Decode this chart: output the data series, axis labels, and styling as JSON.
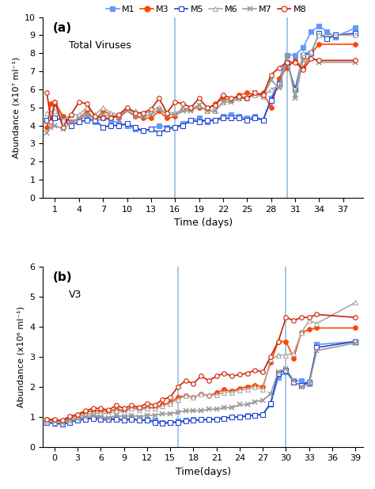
{
  "panel_a": {
    "title": "(a)",
    "label": "Total Viruses",
    "ylabel": "Abundance (x10⁷ ml⁻¹)",
    "xlabel": "Time (days)",
    "ylim": [
      0,
      10
    ],
    "yticks": [
      0,
      1,
      2,
      3,
      4,
      5,
      6,
      7,
      8,
      9,
      10
    ],
    "xticks": [
      1,
      4,
      7,
      10,
      13,
      16,
      19,
      22,
      25,
      28,
      31,
      34,
      37
    ],
    "xlim": [
      -0.5,
      39.5
    ],
    "vlines": [
      16,
      30
    ],
    "series": {
      "M1": {
        "x": [
          0,
          0.5,
          1,
          2,
          3,
          4,
          5,
          6,
          7,
          8,
          9,
          10,
          11,
          12,
          13,
          14,
          15,
          16,
          17,
          18,
          19,
          20,
          21,
          22,
          23,
          24,
          25,
          26,
          27,
          28,
          29,
          30,
          31,
          32,
          33,
          34,
          35,
          36,
          38.5
        ],
        "y": [
          4.3,
          4.6,
          5.2,
          4.4,
          4.2,
          4.3,
          4.5,
          4.2,
          4.4,
          4.3,
          4.1,
          4.0,
          3.8,
          3.7,
          3.8,
          4.0,
          3.9,
          3.9,
          4.1,
          4.3,
          4.4,
          4.2,
          4.3,
          4.5,
          4.6,
          4.5,
          4.4,
          4.5,
          4.3,
          5.5,
          6.5,
          7.9,
          7.9,
          8.3,
          9.2,
          9.5,
          9.2,
          8.9,
          9.4
        ],
        "color": "#6699ff",
        "marker": "s",
        "filled": true
      },
      "M3": {
        "x": [
          0,
          0.5,
          1,
          2,
          3,
          4,
          5,
          6,
          7,
          8,
          9,
          10,
          11,
          12,
          13,
          14,
          15,
          16,
          17,
          18,
          19,
          20,
          21,
          22,
          23,
          24,
          25,
          26,
          27,
          28,
          29,
          30,
          31,
          32,
          33,
          34,
          38.5
        ],
        "y": [
          3.9,
          5.2,
          5.3,
          4.5,
          4.2,
          4.4,
          4.8,
          4.3,
          4.8,
          4.6,
          4.4,
          4.9,
          4.5,
          4.4,
          4.4,
          4.8,
          4.4,
          4.5,
          4.9,
          4.9,
          5.0,
          4.9,
          5.2,
          5.5,
          5.4,
          5.7,
          5.8,
          5.7,
          5.8,
          5.0,
          6.6,
          7.2,
          7.6,
          7.2,
          8.0,
          8.5,
          8.5
        ],
        "color": "#ff4500",
        "marker": "o",
        "filled": true
      },
      "M5": {
        "x": [
          0,
          0.5,
          1,
          2,
          3,
          4,
          5,
          6,
          7,
          8,
          9,
          10,
          11,
          12,
          13,
          14,
          15,
          16,
          17,
          18,
          19,
          20,
          21,
          22,
          23,
          24,
          25,
          26,
          27,
          28,
          29,
          30,
          31,
          32,
          33,
          34,
          35,
          36,
          38.5
        ],
        "y": [
          4.3,
          4.4,
          4.4,
          4.3,
          4.0,
          4.2,
          4.3,
          4.3,
          3.9,
          4.0,
          4.0,
          4.1,
          3.9,
          3.7,
          3.8,
          3.6,
          3.8,
          3.9,
          4.0,
          4.3,
          4.2,
          4.3,
          4.3,
          4.4,
          4.4,
          4.4,
          4.3,
          4.4,
          4.3,
          5.4,
          6.3,
          7.5,
          6.0,
          7.9,
          8.0,
          9.1,
          8.8,
          9.0,
          9.1
        ],
        "color": "#2244cc",
        "marker": "s",
        "filled": false
      },
      "M6": {
        "x": [
          0,
          0.5,
          1,
          2,
          3,
          4,
          5,
          6,
          7,
          8,
          9,
          10,
          11,
          12,
          13,
          14,
          15,
          16,
          17,
          18,
          19,
          20,
          21,
          22,
          23,
          24,
          25,
          26,
          27,
          28,
          29,
          30,
          31,
          32,
          33,
          34,
          38.5
        ],
        "y": [
          4.7,
          4.7,
          4.8,
          4.3,
          4.6,
          4.6,
          5.0,
          4.6,
          5.0,
          4.7,
          4.6,
          4.9,
          4.8,
          4.6,
          4.8,
          5.0,
          4.7,
          4.7,
          4.9,
          5.0,
          5.1,
          4.8,
          4.8,
          5.3,
          5.5,
          5.5,
          5.5,
          5.7,
          5.6,
          6.0,
          6.2,
          7.6,
          5.7,
          8.0,
          8.1,
          9.0,
          9.0
        ],
        "color": "#aaaaaa",
        "marker": "^",
        "filled": false
      },
      "M7": {
        "x": [
          0,
          0.5,
          1,
          2,
          3,
          4,
          5,
          6,
          7,
          8,
          9,
          10,
          11,
          12,
          13,
          14,
          15,
          16,
          17,
          18,
          19,
          20,
          21,
          22,
          23,
          24,
          25,
          26,
          27,
          28,
          29,
          30,
          31,
          32,
          33,
          34,
          38.5
        ],
        "y": [
          3.6,
          3.9,
          4.0,
          3.8,
          4.2,
          4.4,
          4.6,
          4.4,
          4.6,
          4.5,
          4.4,
          4.8,
          4.5,
          4.5,
          4.6,
          4.9,
          4.6,
          4.6,
          4.8,
          4.8,
          5.1,
          4.8,
          4.8,
          5.3,
          5.3,
          5.5,
          5.5,
          5.8,
          5.6,
          6.5,
          6.1,
          7.9,
          5.5,
          7.6,
          7.8,
          7.5,
          7.5
        ],
        "color": "#999999",
        "marker": "x",
        "filled": true
      },
      "M8": {
        "x": [
          0,
          0.5,
          1,
          2,
          3,
          4,
          5,
          6,
          7,
          8,
          9,
          10,
          11,
          12,
          13,
          14,
          15,
          16,
          17,
          18,
          19,
          20,
          21,
          22,
          23,
          24,
          25,
          26,
          27,
          28,
          29,
          30,
          31,
          32,
          33,
          34,
          38.5
        ],
        "y": [
          5.8,
          4.2,
          5.3,
          3.9,
          4.6,
          5.3,
          5.2,
          4.5,
          4.4,
          4.4,
          4.6,
          5.0,
          4.7,
          4.7,
          4.9,
          5.5,
          4.7,
          5.3,
          5.2,
          5.0,
          5.5,
          5.0,
          5.1,
          5.7,
          5.5,
          5.6,
          5.5,
          5.8,
          5.7,
          6.8,
          7.2,
          7.5,
          7.5,
          7.1,
          7.7,
          7.6,
          7.6
        ],
        "color": "#cc2200",
        "marker": "o",
        "filled": false
      }
    }
  },
  "panel_b": {
    "title": "(b)",
    "label": "V3",
    "ylabel": "Abundance (x10⁶ ml⁻¹)",
    "xlabel": "Time(days)",
    "ylim": [
      0,
      6
    ],
    "yticks": [
      0,
      1,
      2,
      3,
      4,
      5,
      6
    ],
    "xticks": [
      0,
      3,
      6,
      9,
      12,
      15,
      18,
      21,
      24,
      27,
      30,
      33,
      36,
      39
    ],
    "xlim": [
      -1.5,
      40
    ],
    "vlines": [
      16,
      30
    ],
    "series": {
      "M1": {
        "x": [
          -1,
          0,
          1,
          2,
          3,
          4,
          5,
          6,
          7,
          8,
          9,
          10,
          11,
          12,
          13,
          14,
          15,
          16,
          17,
          18,
          19,
          20,
          21,
          22,
          23,
          24,
          25,
          26,
          27,
          28,
          29,
          30,
          31,
          32,
          33,
          34,
          39
        ],
        "y": [
          0.85,
          0.8,
          0.78,
          0.88,
          0.92,
          0.95,
          1.0,
          0.95,
          0.95,
          0.95,
          0.9,
          0.95,
          0.9,
          0.9,
          0.88,
          0.82,
          0.82,
          0.85,
          0.88,
          0.9,
          0.9,
          0.92,
          0.92,
          0.95,
          1.0,
          1.0,
          1.05,
          1.05,
          1.08,
          1.4,
          2.3,
          2.5,
          2.2,
          2.2,
          2.1,
          3.4,
          3.5
        ],
        "color": "#6699ff",
        "marker": "s",
        "filled": true
      },
      "M3": {
        "x": [
          -1,
          0,
          1,
          2,
          3,
          4,
          5,
          6,
          7,
          8,
          9,
          10,
          11,
          12,
          13,
          14,
          15,
          16,
          17,
          18,
          19,
          20,
          21,
          22,
          23,
          24,
          25,
          26,
          27,
          28,
          29,
          30,
          31,
          32,
          33,
          34,
          39
        ],
        "y": [
          0.9,
          0.88,
          0.85,
          0.95,
          1.05,
          1.15,
          1.2,
          1.2,
          1.18,
          1.25,
          1.2,
          1.3,
          1.28,
          1.32,
          1.3,
          1.4,
          1.48,
          1.65,
          1.7,
          1.65,
          1.75,
          1.7,
          1.8,
          1.9,
          1.85,
          1.95,
          2.0,
          2.05,
          2.0,
          2.8,
          3.5,
          3.5,
          2.95,
          3.8,
          3.9,
          3.95,
          3.95
        ],
        "color": "#ff4500",
        "marker": "o",
        "filled": true
      },
      "M5": {
        "x": [
          -1,
          0,
          1,
          2,
          3,
          4,
          5,
          6,
          7,
          8,
          9,
          10,
          11,
          12,
          13,
          14,
          15,
          16,
          17,
          18,
          19,
          20,
          21,
          22,
          23,
          24,
          25,
          26,
          27,
          28,
          29,
          30,
          31,
          32,
          33,
          34,
          39
        ],
        "y": [
          0.8,
          0.78,
          0.75,
          0.82,
          0.88,
          0.92,
          0.95,
          0.9,
          0.9,
          0.92,
          0.88,
          0.92,
          0.88,
          0.88,
          0.82,
          0.78,
          0.8,
          0.82,
          0.85,
          0.88,
          0.9,
          0.9,
          0.92,
          0.95,
          0.98,
          1.0,
          1.02,
          1.05,
          1.08,
          1.45,
          2.45,
          2.55,
          2.15,
          2.05,
          2.15,
          3.3,
          3.5
        ],
        "color": "#2244cc",
        "marker": "s",
        "filled": false
      },
      "M6": {
        "x": [
          -1,
          0,
          1,
          2,
          3,
          4,
          5,
          6,
          7,
          8,
          9,
          10,
          11,
          12,
          13,
          14,
          15,
          16,
          17,
          18,
          19,
          20,
          21,
          22,
          23,
          24,
          25,
          26,
          27,
          28,
          29,
          30,
          31,
          32,
          33,
          34,
          39
        ],
        "y": [
          0.85,
          0.82,
          0.8,
          0.88,
          0.98,
          1.08,
          1.12,
          1.12,
          1.1,
          1.2,
          1.15,
          1.28,
          1.22,
          1.28,
          1.28,
          1.35,
          1.45,
          1.58,
          1.7,
          1.65,
          1.75,
          1.72,
          1.72,
          1.82,
          1.82,
          1.88,
          1.92,
          1.98,
          1.92,
          2.9,
          3.05,
          3.05,
          3.1,
          3.8,
          4.2,
          4.1,
          4.8
        ],
        "color": "#aaaaaa",
        "marker": "^",
        "filled": false
      },
      "M7": {
        "x": [
          -1,
          0,
          1,
          2,
          3,
          4,
          5,
          6,
          7,
          8,
          9,
          10,
          11,
          12,
          13,
          14,
          15,
          16,
          17,
          18,
          19,
          20,
          21,
          22,
          23,
          24,
          25,
          26,
          27,
          28,
          29,
          30,
          31,
          32,
          33,
          34,
          39
        ],
        "y": [
          0.88,
          0.85,
          0.82,
          0.88,
          0.95,
          1.0,
          1.05,
          1.0,
          0.95,
          1.05,
          1.0,
          1.05,
          1.0,
          1.05,
          1.05,
          1.1,
          1.1,
          1.15,
          1.2,
          1.2,
          1.2,
          1.25,
          1.25,
          1.3,
          1.3,
          1.4,
          1.4,
          1.5,
          1.55,
          1.75,
          2.5,
          2.6,
          2.2,
          2.0,
          2.1,
          3.2,
          3.45
        ],
        "color": "#999999",
        "marker": "x",
        "filled": true
      },
      "M8": {
        "x": [
          -1,
          0,
          1,
          2,
          3,
          4,
          5,
          6,
          7,
          8,
          9,
          10,
          11,
          12,
          13,
          14,
          15,
          16,
          17,
          18,
          19,
          20,
          21,
          22,
          23,
          24,
          25,
          26,
          27,
          28,
          29,
          30,
          31,
          32,
          33,
          34,
          39
        ],
        "y": [
          0.92,
          0.9,
          0.88,
          1.02,
          1.08,
          1.2,
          1.28,
          1.28,
          1.22,
          1.38,
          1.28,
          1.38,
          1.32,
          1.45,
          1.38,
          1.58,
          1.65,
          2.0,
          2.2,
          2.1,
          2.35,
          2.2,
          2.35,
          2.45,
          2.35,
          2.4,
          2.45,
          2.55,
          2.48,
          3.0,
          3.5,
          4.3,
          4.2,
          4.3,
          4.3,
          4.4,
          4.3
        ],
        "color": "#cc2200",
        "marker": "o",
        "filled": false
      }
    }
  },
  "legend": {
    "entries": [
      "M1",
      "M3",
      "M5",
      "M6",
      "M7",
      "M8"
    ],
    "colors": [
      "#6699ff",
      "#ff4500",
      "#2244cc",
      "#aaaaaa",
      "#999999",
      "#cc2200"
    ],
    "markers": [
      "s",
      "o",
      "s",
      "^",
      "x",
      "o"
    ],
    "filled": [
      true,
      true,
      false,
      false,
      true,
      false
    ]
  },
  "vline_color": "#99bbdd",
  "background": "#ffffff"
}
